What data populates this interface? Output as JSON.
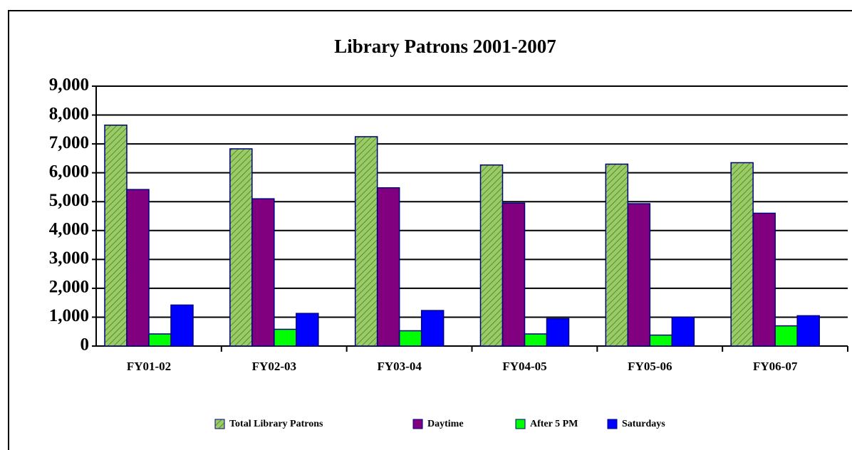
{
  "chart_data": {
    "type": "bar",
    "title": "Library Patrons 2001-2007",
    "categories": [
      "FY01-02",
      "FY02-03",
      "FY03-04",
      "FY04-05",
      "FY05-06",
      "FY06-07"
    ],
    "series": [
      {
        "name": "Total Library Patrons",
        "color": "#99cc66",
        "values": [
          7650,
          6830,
          7250,
          6270,
          6300,
          6350
        ]
      },
      {
        "name": "Daytime",
        "color": "#800080",
        "values": [
          5420,
          5100,
          5480,
          4950,
          4930,
          4600
        ]
      },
      {
        "name": "After 5 PM",
        "color": "#00ff00",
        "values": [
          420,
          580,
          530,
          420,
          380,
          700
        ]
      },
      {
        "name": "Saturdays",
        "color": "#0000ff",
        "values": [
          1420,
          1130,
          1230,
          950,
          1000,
          1050
        ]
      }
    ],
    "ylim": [
      0,
      9000
    ],
    "yticks": [
      0,
      {
        "value": 1000,
        "label": "1,000"
      },
      {
        "value": 2000,
        "label": "2,000"
      },
      {
        "value": 3000,
        "label": "3,000"
      },
      {
        "value": 4000,
        "label": "4,000"
      },
      {
        "value": 5000,
        "label": "5,000"
      },
      {
        "value": 6000,
        "label": "6,000"
      },
      {
        "value": 7000,
        "label": "7,000"
      },
      {
        "value": 8000,
        "label": "8,000"
      },
      {
        "value": 9000,
        "label": "9,000"
      }
    ],
    "grid": true,
    "legend": "bottom"
  }
}
